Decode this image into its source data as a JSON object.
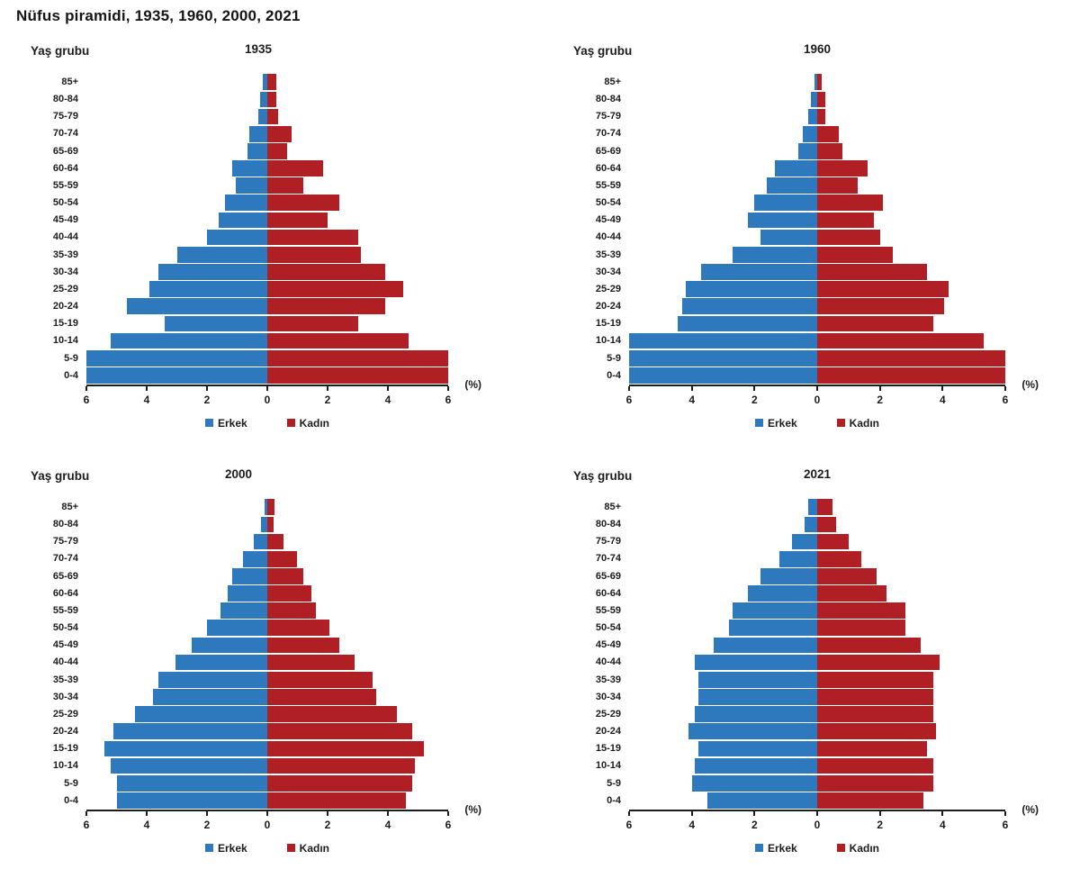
{
  "page_title": "Nüfus piramidi, 1935, 1960, 2000, 2021",
  "colors": {
    "male": "#2e78be",
    "female": "#b01f24",
    "axis": "#1c1c1c",
    "text": "#1c1c1c"
  },
  "chart_data": [
    {
      "id": "1935",
      "type": "bar",
      "variant": "population-pyramid",
      "title": "1935",
      "ylabel": "Yaş grubu",
      "xlabel": "(%)",
      "xmax": 6,
      "xticks": [
        "6",
        "4",
        "2",
        "0",
        "2",
        "4",
        "6"
      ],
      "grid": false,
      "legend_position": "bottom",
      "legend": [
        {
          "name": "Erkek",
          "color_key": "male"
        },
        {
          "name": "Kadın",
          "color_key": "female"
        }
      ],
      "age_groups": [
        "85+",
        "80-84",
        "75-79",
        "70-74",
        "65-69",
        "60-64",
        "55-59",
        "50-54",
        "45-49",
        "40-44",
        "35-39",
        "30-34",
        "25-29",
        "20-24",
        "15-19",
        "10-14",
        "5-9",
        "0-4"
      ],
      "series": [
        {
          "name": "Erkek",
          "values": [
            0.15,
            0.25,
            0.3,
            0.6,
            0.65,
            1.15,
            1.05,
            1.4,
            1.6,
            2.0,
            3.0,
            3.6,
            3.9,
            4.65,
            3.4,
            5.2,
            6.0,
            6.0
          ]
        },
        {
          "name": "Kadın",
          "values": [
            0.3,
            0.3,
            0.35,
            0.8,
            0.65,
            1.85,
            1.2,
            2.4,
            2.0,
            3.0,
            3.1,
            3.9,
            4.5,
            3.9,
            3.0,
            4.7,
            6.0,
            6.0
          ]
        }
      ]
    },
    {
      "id": "1960",
      "type": "bar",
      "variant": "population-pyramid",
      "title": "1960",
      "ylabel": "Yaş grubu",
      "xlabel": "(%)",
      "xmax": 6,
      "xticks": [
        "6",
        "4",
        "2",
        "0",
        "2",
        "4",
        "6"
      ],
      "grid": false,
      "legend_position": "bottom",
      "legend": [
        {
          "name": "Erkek",
          "color_key": "male"
        },
        {
          "name": "Kadın",
          "color_key": "female"
        }
      ],
      "age_groups": [
        "85+",
        "80-84",
        "75-79",
        "70-74",
        "65-69",
        "60-64",
        "55-59",
        "50-54",
        "45-49",
        "40-44",
        "35-39",
        "30-34",
        "25-29",
        "20-24",
        "15-19",
        "10-14",
        "5-9",
        "0-4"
      ],
      "series": [
        {
          "name": "Erkek",
          "values": [
            0.1,
            0.2,
            0.3,
            0.45,
            0.6,
            1.35,
            1.6,
            2.0,
            2.2,
            1.8,
            2.7,
            3.7,
            4.2,
            4.3,
            4.45,
            6.0,
            6.0,
            6.0
          ]
        },
        {
          "name": "Kadın",
          "values": [
            0.15,
            0.25,
            0.25,
            0.7,
            0.8,
            1.6,
            1.3,
            2.1,
            1.8,
            2.0,
            2.4,
            3.5,
            4.2,
            4.05,
            3.7,
            5.3,
            6.0,
            6.0
          ]
        }
      ]
    },
    {
      "id": "2000",
      "type": "bar",
      "variant": "population-pyramid",
      "title": "2000",
      "ylabel": "Yaş grubu",
      "xlabel": "(%)",
      "xmax": 6,
      "xticks": [
        "6",
        "4",
        "2",
        "0",
        "2",
        "4",
        "6"
      ],
      "grid": false,
      "legend_position": "bottom",
      "legend": [
        {
          "name": "Erkek",
          "color_key": "male"
        },
        {
          "name": "Kadın",
          "color_key": "female"
        }
      ],
      "age_groups": [
        "85+",
        "80-84",
        "75-79",
        "70-74",
        "65-69",
        "60-64",
        "55-59",
        "50-54",
        "45-49",
        "40-44",
        "35-39",
        "30-34",
        "25-29",
        "20-24",
        "15-19",
        "10-14",
        "5-9",
        "0-4"
      ],
      "series": [
        {
          "name": "Erkek",
          "values": [
            0.1,
            0.2,
            0.45,
            0.8,
            1.15,
            1.3,
            1.55,
            2.0,
            2.5,
            3.05,
            3.6,
            3.8,
            4.4,
            5.1,
            5.4,
            5.2,
            5.0,
            5.0
          ]
        },
        {
          "name": "Kadın",
          "values": [
            0.25,
            0.2,
            0.55,
            1.0,
            1.2,
            1.45,
            1.6,
            2.05,
            2.4,
            2.9,
            3.5,
            3.6,
            4.3,
            4.8,
            5.2,
            4.9,
            4.8,
            4.6
          ]
        }
      ]
    },
    {
      "id": "2021",
      "type": "bar",
      "variant": "population-pyramid",
      "title": "2021",
      "ylabel": "Yaş grubu",
      "xlabel": "(%)",
      "xmax": 6,
      "xticks": [
        "6",
        "4",
        "2",
        "0",
        "2",
        "4",
        "6"
      ],
      "grid": false,
      "legend_position": "bottom",
      "legend": [
        {
          "name": "Erkek",
          "color_key": "male"
        },
        {
          "name": "Kadın",
          "color_key": "female"
        }
      ],
      "age_groups": [
        "85+",
        "80-84",
        "75-79",
        "70-74",
        "65-69",
        "60-64",
        "55-59",
        "50-54",
        "45-49",
        "40-44",
        "35-39",
        "30-34",
        "25-29",
        "20-24",
        "15-19",
        "10-14",
        "5-9",
        "0-4"
      ],
      "series": [
        {
          "name": "Erkek",
          "values": [
            0.3,
            0.4,
            0.8,
            1.2,
            1.8,
            2.2,
            2.7,
            2.8,
            3.3,
            3.9,
            3.8,
            3.8,
            3.9,
            4.1,
            3.8,
            3.9,
            4.0,
            3.5
          ]
        },
        {
          "name": "Kadın",
          "values": [
            0.5,
            0.6,
            1.0,
            1.4,
            1.9,
            2.2,
            2.8,
            2.8,
            3.3,
            3.9,
            3.7,
            3.7,
            3.7,
            3.8,
            3.5,
            3.7,
            3.7,
            3.4
          ]
        }
      ]
    }
  ]
}
